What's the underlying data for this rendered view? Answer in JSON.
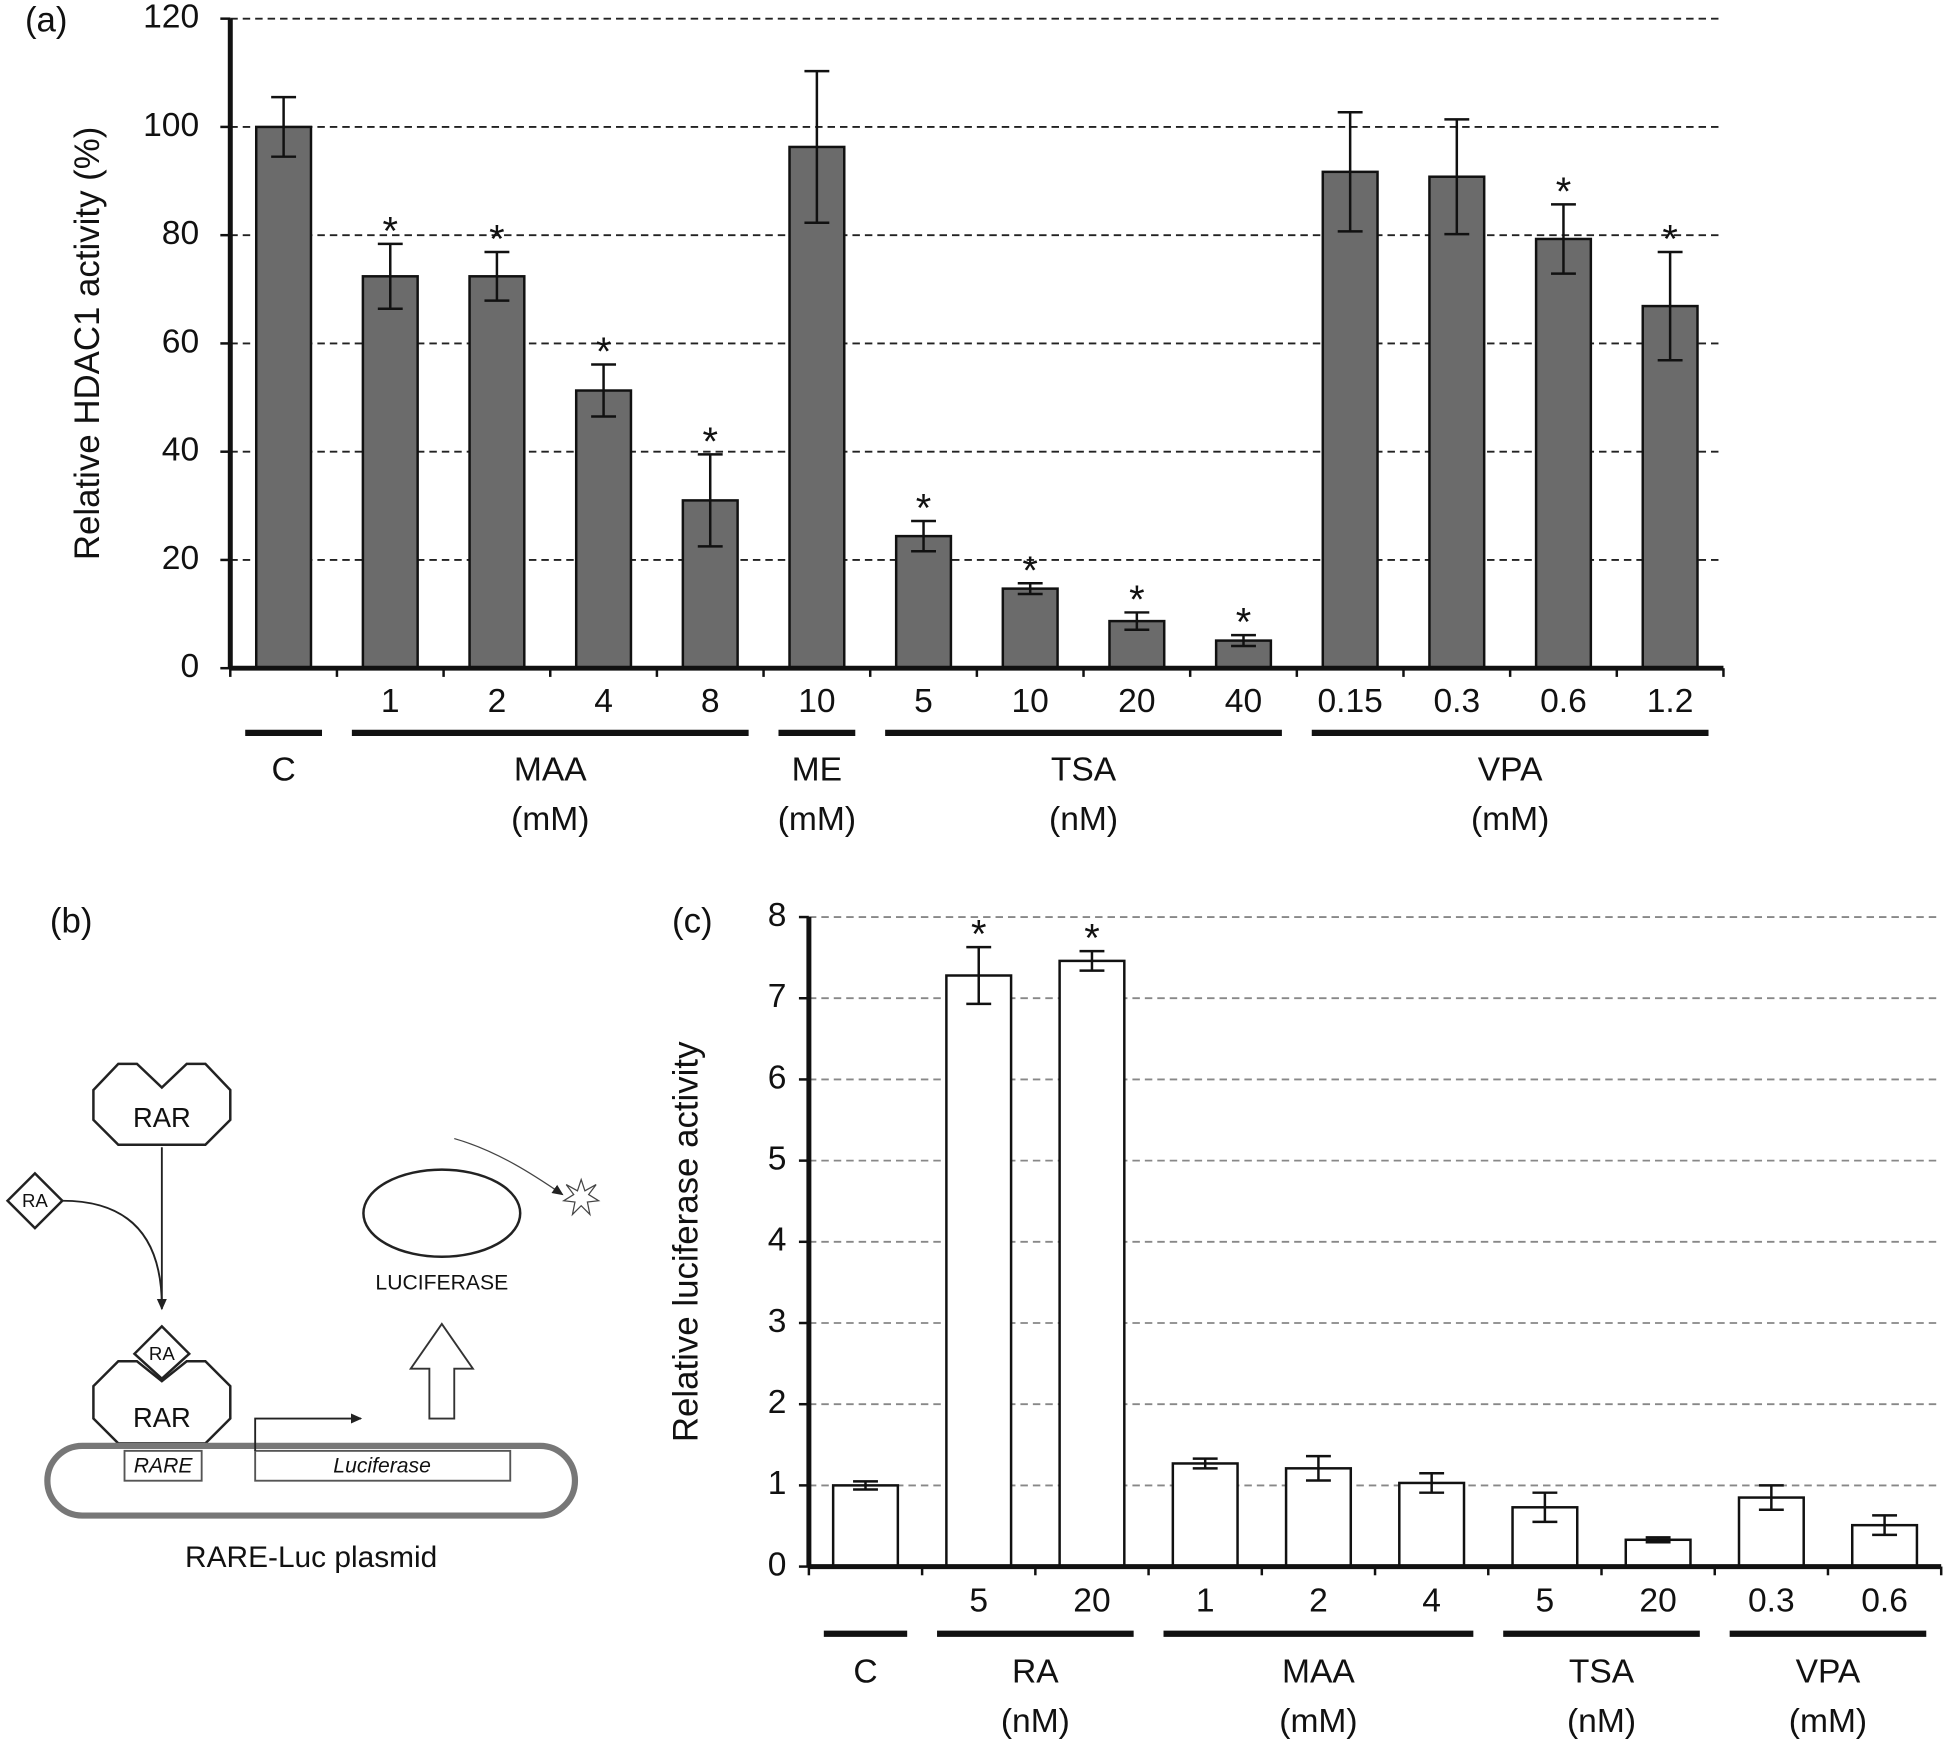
{
  "chart_data": [
    {
      "type": "bar",
      "panel_label": "(a)",
      "y_label": "Relative HDAC1 activity (%)",
      "ylim": [
        0,
        120
      ],
      "yticks": [
        0,
        20,
        40,
        60,
        80,
        100,
        120
      ],
      "grid": true,
      "color": "#6b6b6b",
      "groups": [
        {
          "name": "C",
          "categories": [
            null
          ],
          "values": [
            100
          ],
          "errors": [
            5.5
          ]
        },
        {
          "name": "MAA",
          "unit": "(mM)",
          "categories": [
            "1",
            "2",
            "4",
            "8"
          ],
          "values": [
            72.4,
            72.4,
            51.3,
            31
          ],
          "errors": [
            6,
            4.5,
            4.8,
            8.5
          ],
          "annotations": [
            "*",
            "*",
            "*",
            "*"
          ]
        },
        {
          "name": "ME",
          "unit": "(mM)",
          "categories": [
            "10"
          ],
          "values": [
            96.3
          ],
          "errors": [
            14
          ]
        },
        {
          "name": "TSA",
          "unit": "(nM)",
          "categories": [
            "5",
            "10",
            "20",
            "40"
          ],
          "values": [
            24.4,
            14.7,
            8.7,
            5.1
          ],
          "errors": [
            2.8,
            1,
            1.6,
            1
          ],
          "annotations": [
            "*",
            "*",
            "*",
            "*"
          ]
        },
        {
          "name": "VPA",
          "unit": "(mM)",
          "categories": [
            "0.15",
            "0.3",
            "0.6",
            "1.2"
          ],
          "values": [
            91.7,
            90.8,
            79.3,
            66.9
          ],
          "errors": [
            11,
            10.6,
            6.4,
            10
          ],
          "annotations": [
            null,
            null,
            "*",
            "*"
          ]
        }
      ]
    },
    {
      "type": "bar",
      "panel_label": "(c)",
      "y_label": "Relative luciferase activity",
      "ylim": [
        0,
        8
      ],
      "yticks": [
        0,
        1,
        2,
        3,
        4,
        5,
        6,
        7,
        8
      ],
      "grid": true,
      "color": "#ffffff",
      "groups": [
        {
          "name": "C",
          "categories": [
            null
          ],
          "values": [
            1.0
          ],
          "errors": [
            0.05
          ]
        },
        {
          "name": "RA",
          "unit": "(nM)",
          "categories": [
            "5",
            "20"
          ],
          "values": [
            7.28,
            7.46
          ],
          "errors": [
            0.35,
            0.12
          ],
          "annotations": [
            "*",
            "*"
          ]
        },
        {
          "name": "MAA",
          "unit": "(mM)",
          "categories": [
            "1",
            "2",
            "4"
          ],
          "values": [
            1.27,
            1.21,
            1.03
          ],
          "errors": [
            0.06,
            0.15,
            0.12
          ]
        },
        {
          "name": "TSA",
          "unit": "(nM)",
          "categories": [
            "5",
            "20"
          ],
          "values": [
            0.73,
            0.33
          ],
          "errors": [
            0.18,
            0.03
          ]
        },
        {
          "name": "VPA",
          "unit": "(mM)",
          "categories": [
            "0.3",
            "0.6"
          ],
          "values": [
            0.85,
            0.51
          ],
          "errors": [
            0.15,
            0.12
          ]
        }
      ]
    }
  ],
  "diagram": {
    "panel_label": "(b)",
    "receptor": "RAR",
    "ligand": "RA",
    "bound_ligand": "RA",
    "bound_receptor": "RAR",
    "protein": "LUCIFERASE",
    "element": "RARE",
    "gene": "Luciferase",
    "caption": "RARE-Luc plasmid"
  }
}
